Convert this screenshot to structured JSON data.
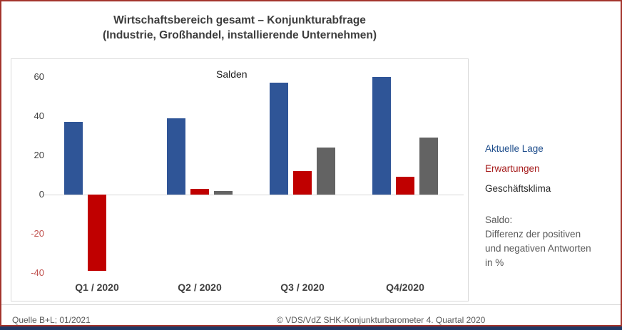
{
  "title": {
    "line1": "Wirtschaftsbereich gesamt – Konjunkturabfrage",
    "line2": "(Industrie, Großhandel, installierende Unternehmen)"
  },
  "chart_data": {
    "type": "bar",
    "title": "Salden",
    "categories": [
      "Q1 / 2020",
      "Q2 / 2020",
      "Q3 / 2020",
      "Q4/2020"
    ],
    "series": [
      {
        "name": "Aktuelle Lage",
        "color": "#2f5597",
        "values": [
          37,
          39,
          57,
          60
        ]
      },
      {
        "name": "Erwartungen",
        "color": "#c00000",
        "values": [
          -39,
          3,
          12,
          9
        ]
      },
      {
        "name": "Geschäftsklima",
        "color": "#636363",
        "values": [
          0,
          2,
          24,
          29
        ]
      }
    ],
    "yticks": [
      60,
      40,
      20,
      0,
      -20,
      -40
    ],
    "ylim": [
      -55,
      68
    ],
    "grid": "zero-line-only",
    "legend_position": "right",
    "xlabel": "",
    "ylabel": "Salden"
  },
  "legend": {
    "items": [
      {
        "label": "Aktuelle Lage",
        "color": "#1f4e8c"
      },
      {
        "label": "Erwartungen",
        "color": "#a61c1c"
      },
      {
        "label": "Geschäftsklima",
        "color": "#262626"
      }
    ],
    "note_lines": [
      "Saldo:",
      "Differenz der positiven",
      "und negativen Antworten",
      "in %"
    ]
  },
  "footer": {
    "source": "Quelle B+L; 01/2021",
    "copyright": "© VDS/VdZ SHK-Konjunkturbarometer 4. Quartal 2020"
  },
  "colors": {
    "frame_border": "#a3342c",
    "bottom_bar": "#203864",
    "plot_border": "#d9d9d9",
    "axis_line": "#d9d9d9",
    "tick": "#404040",
    "negative_tick": "#c0504d",
    "title_text": "#3d3d3d",
    "footer_text": "#595959"
  }
}
